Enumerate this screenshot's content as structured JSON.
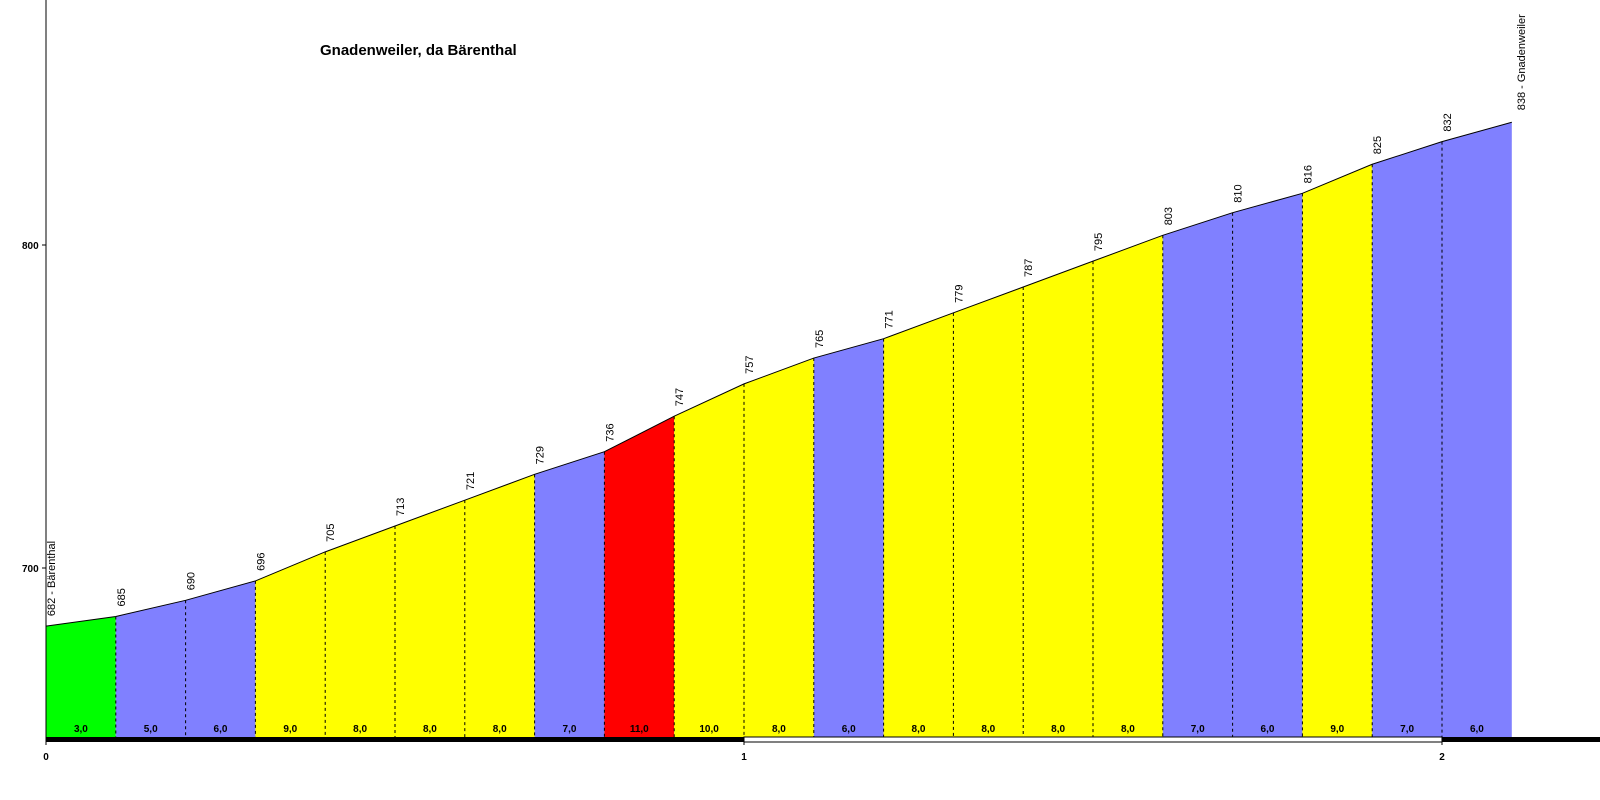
{
  "chart_data": {
    "type": "area",
    "title": "Gnadenweiler, da Bärenthal",
    "xlabel": "",
    "ylabel": "",
    "x_range": [
      0,
      2.2
    ],
    "y_range": [
      638,
      874
    ],
    "y_ticks": [
      700,
      800
    ],
    "x_ticks": [
      0,
      1,
      2
    ],
    "grid": false,
    "start_label": "682 - Bärenthal",
    "end_label": "838 - Gnadenweiler",
    "distance_km": [
      0,
      0.1,
      0.2,
      0.3,
      0.4,
      0.5,
      0.6,
      0.7,
      0.8,
      0.9,
      1.0,
      1.1,
      1.2,
      1.3,
      1.4,
      1.5,
      1.6,
      1.7,
      1.8,
      1.9,
      2.0,
      2.1
    ],
    "elevations": [
      682,
      685,
      690,
      696,
      705,
      713,
      721,
      729,
      736,
      747,
      757,
      765,
      771,
      779,
      787,
      795,
      803,
      810,
      816,
      825,
      832,
      838
    ],
    "elevation_labels": [
      "685",
      "690",
      "696",
      "705",
      "713",
      "721",
      "729",
      "736",
      "747",
      "757",
      "765",
      "771",
      "779",
      "787",
      "795",
      "803",
      "810",
      "816",
      "825",
      "832"
    ],
    "gradients": [
      "3,0",
      "5,0",
      "6,0",
      "9,0",
      "8,0",
      "8,0",
      "8,0",
      "7,0",
      "11,0",
      "10,0",
      "8,0",
      "6,0",
      "8,0",
      "8,0",
      "8,0",
      "8,0",
      "7,0",
      "6,0",
      "9,0",
      "7,0",
      "6,0"
    ],
    "gradient_colors": {
      "low": "#00ff00",
      "moderate": "#8080ff",
      "steep": "#ffff00",
      "very_steep": "#ff0000"
    }
  }
}
